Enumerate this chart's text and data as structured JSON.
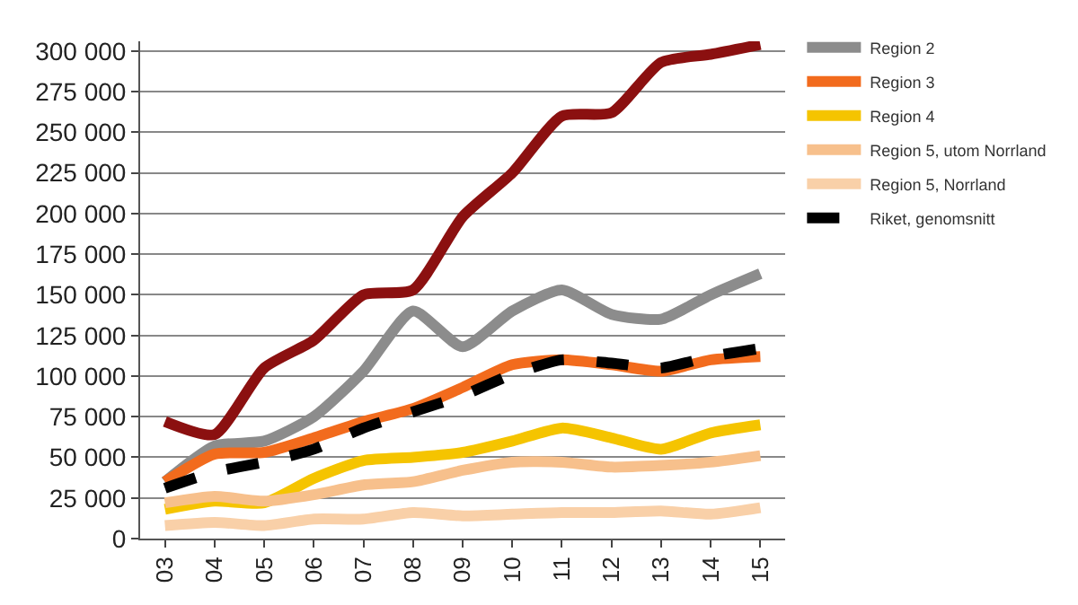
{
  "chart_data": {
    "type": "line",
    "categories": [
      "03",
      "04",
      "05",
      "06",
      "07",
      "08",
      "09",
      "10",
      "11",
      "12",
      "13",
      "14",
      "15"
    ],
    "series": [
      {
        "color": "#8b1010",
        "values": [
          72000,
          64000,
          105000,
          122000,
          150000,
          153000,
          198000,
          225000,
          260000,
          262000,
          293000,
          298000,
          304000
        ]
      },
      {
        "name": "Region 2",
        "color": "#8c8c8c",
        "values": [
          35000,
          57000,
          60000,
          75000,
          103000,
          140000,
          118000,
          140000,
          153000,
          138000,
          135000,
          150000,
          163000
        ]
      },
      {
        "name": "Region 3",
        "color": "#f26b1d",
        "values": [
          35000,
          52000,
          53000,
          62000,
          72000,
          80000,
          93000,
          107000,
          110000,
          107000,
          103000,
          110000,
          112000
        ]
      },
      {
        "name": "Region 4",
        "color": "#f5c400",
        "values": [
          18000,
          23000,
          22000,
          37000,
          48000,
          50000,
          53000,
          60000,
          68000,
          62000,
          55000,
          65000,
          70000
        ]
      },
      {
        "name": "Region 5, utom Norrland",
        "color": "#f7c08c",
        "values": [
          22000,
          26000,
          23000,
          27000,
          33000,
          35000,
          42000,
          47000,
          47000,
          44000,
          45000,
          47000,
          51000
        ]
      },
      {
        "name": "Region 5, Norrland",
        "color": "#f9d0a8",
        "values": [
          8000,
          10000,
          8000,
          12000,
          12000,
          16000,
          14000,
          15000,
          16000,
          16000,
          17000,
          15000,
          19000
        ]
      },
      {
        "name": "Riket, genomsnitt",
        "color": "#000000",
        "line_style": "dashed",
        "values": [
          31000,
          41000,
          47000,
          55000,
          68000,
          78000,
          88000,
          101000,
          110000,
          108000,
          105000,
          112000,
          117000
        ]
      }
    ],
    "ylim": [
      0,
      306000
    ],
    "yticks": [
      {
        "value": 0,
        "label": "0"
      },
      {
        "value": 25000,
        "label": "25 000"
      },
      {
        "value": 50000,
        "label": "50 000"
      },
      {
        "value": 75000,
        "label": "75 000"
      },
      {
        "value": 100000,
        "label": "100 000"
      },
      {
        "value": 125000,
        "label": "125 000"
      },
      {
        "value": 150000,
        "label": "150 000"
      },
      {
        "value": 175000,
        "label": "175 000"
      },
      {
        "value": 200000,
        "label": "200 000"
      },
      {
        "value": 225000,
        "label": "225 000"
      },
      {
        "value": 250000,
        "label": "250 000"
      },
      {
        "value": 275000,
        "label": "275 000"
      },
      {
        "value": 300000,
        "label": "300 000"
      }
    ],
    "grid": "y",
    "legend": "top right",
    "line_style": "solid",
    "marker": "none"
  }
}
